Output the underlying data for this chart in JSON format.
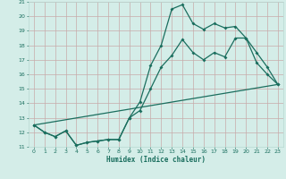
{
  "title": "",
  "xlabel": "Humidex (Indice chaleur)",
  "xlim": [
    -0.5,
    23.5
  ],
  "ylim": [
    11,
    21
  ],
  "yticks": [
    11,
    12,
    13,
    14,
    15,
    16,
    17,
    18,
    19,
    20,
    21
  ],
  "xticks": [
    0,
    1,
    2,
    3,
    4,
    5,
    6,
    7,
    8,
    9,
    10,
    11,
    12,
    13,
    14,
    15,
    16,
    17,
    18,
    19,
    20,
    21,
    22,
    23
  ],
  "background_color": "#d4ede8",
  "grid_color": "#b8d8d2",
  "line_color": "#1a6e5e",
  "line1_x": [
    0,
    1,
    2,
    3,
    4,
    5,
    6,
    7,
    8,
    9,
    10,
    11,
    12,
    13,
    14,
    15,
    16,
    17,
    18,
    19,
    20,
    21,
    22,
    23
  ],
  "line1_y": [
    12.5,
    12.0,
    11.7,
    12.1,
    11.1,
    11.3,
    11.4,
    11.5,
    11.5,
    13.0,
    14.1,
    16.6,
    18.0,
    20.5,
    20.8,
    19.5,
    19.1,
    19.5,
    19.2,
    19.3,
    18.5,
    16.8,
    16.0,
    15.3
  ],
  "line2_x": [
    0,
    1,
    2,
    3,
    4,
    5,
    6,
    7,
    8,
    9,
    10,
    11,
    12,
    13,
    14,
    15,
    16,
    17,
    18,
    19,
    20,
    21,
    22,
    23
  ],
  "line2_y": [
    12.5,
    12.0,
    11.7,
    12.1,
    11.1,
    11.3,
    11.4,
    11.5,
    11.5,
    13.0,
    13.5,
    15.0,
    16.5,
    17.3,
    18.4,
    17.5,
    17.0,
    17.5,
    17.2,
    18.5,
    18.5,
    17.5,
    16.5,
    15.3
  ],
  "line3_x": [
    0,
    23
  ],
  "line3_y": [
    12.5,
    15.3
  ],
  "figsize": [
    3.2,
    2.0
  ],
  "dpi": 100
}
